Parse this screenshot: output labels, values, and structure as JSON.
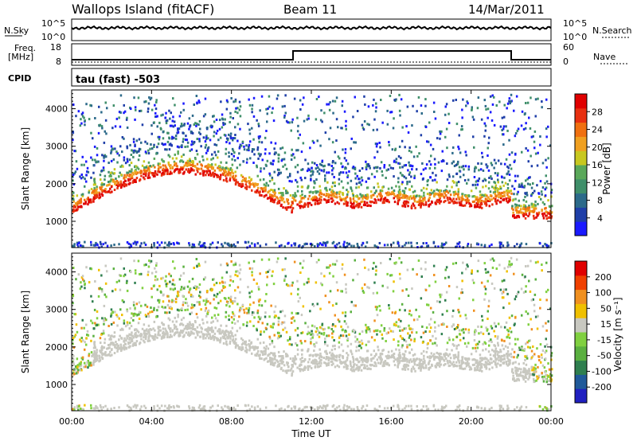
{
  "header": {
    "station": "Wallops Island (fitACF)",
    "beam": "Beam 11",
    "date": "14/Mar/2011"
  },
  "status_panels": {
    "nsky_label": "N.Sky",
    "nsearch_label": "N.Search",
    "nsky_ticks": [
      "10^5",
      "10^0"
    ],
    "nsearch_ticks": [
      "10^5",
      "10^0"
    ],
    "freq_label_line1": "Freq.",
    "freq_label_line2": "[MHz]",
    "freq_ticks": [
      "18",
      "8"
    ],
    "nave_ticks": [
      "60",
      "0"
    ],
    "nave_label": "Nave",
    "cpid_label": "CPID",
    "cpid_value": "tau (fast) -503"
  },
  "chart_data": [
    {
      "type": "heatmap",
      "name": "power",
      "ylabel": "Slant Range [km]",
      "ylim": [
        300,
        4500
      ],
      "yticks": [
        "1000",
        "2000",
        "3000",
        "4000"
      ],
      "xlim": [
        "00:00",
        "24:00"
      ],
      "colorbar": {
        "label": "Power [dB]",
        "ticks": [
          "4",
          "8",
          "12",
          "16",
          "20",
          "24",
          "28"
        ],
        "colors": [
          "#1a1aff",
          "#1f3fa8",
          "#2c6a8a",
          "#3f8f6a",
          "#5aa85a",
          "#c8c820",
          "#f0a020",
          "#f07010",
          "#e83010",
          "#e00000"
        ]
      }
    },
    {
      "type": "heatmap",
      "name": "velocity",
      "ylabel": "Slant Range [km]",
      "ylim": [
        300,
        4500
      ],
      "yticks": [
        "1000",
        "2000",
        "3000",
        "4000"
      ],
      "xlabel": "Time UT",
      "xticks": [
        "00:00",
        "04:00",
        "08:00",
        "12:00",
        "16:00",
        "20:00",
        "00:00"
      ],
      "colorbar": {
        "label": "Velocity [m s⁻¹]",
        "ticks": [
          "200",
          "100",
          "50",
          "15",
          "-15",
          "-50",
          "-100",
          "-200"
        ],
        "colors": [
          "#2020c0",
          "#205a9a",
          "#2f7f4f",
          "#5ab040",
          "#80d040",
          "#c8c8c0",
          "#f0c000",
          "#f09020",
          "#f04000",
          "#e00000"
        ]
      }
    }
  ],
  "colors": {
    "ground_scatter": "#c0c0b8",
    "frame": "#000000"
  }
}
